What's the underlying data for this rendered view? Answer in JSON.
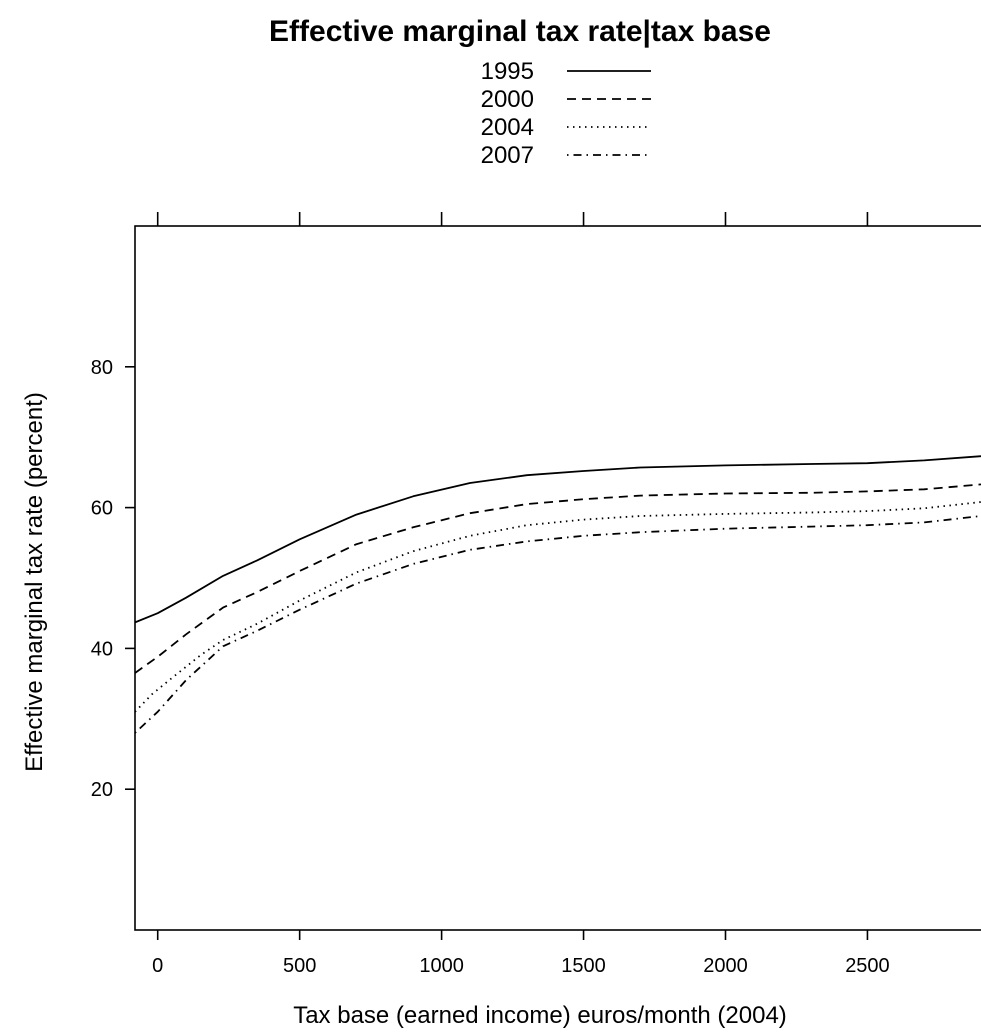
{
  "chart_data": {
    "type": "line",
    "title": "Effective marginal tax rate|tax base",
    "xlabel": "Tax base (earned income) euros/month (2004)",
    "ylabel": "Effective marginal tax rate (percent)",
    "xlim": [
      -80,
      2900
    ],
    "ylim": [
      0,
      100
    ],
    "xticks": [
      0,
      500,
      1000,
      1500,
      2000,
      2500
    ],
    "yticks": [
      20,
      40,
      60,
      80
    ],
    "grid": false,
    "legend_position": "top-center",
    "series": [
      {
        "name": "1995",
        "dash": "solid",
        "x": [
          -80,
          0,
          100,
          230,
          350,
          500,
          700,
          900,
          1100,
          1300,
          1500,
          1700,
          2000,
          2300,
          2500,
          2700,
          2900
        ],
        "y": [
          43.7,
          45.0,
          47.2,
          50.3,
          52.5,
          55.5,
          59.0,
          61.6,
          63.5,
          64.6,
          65.2,
          65.7,
          66.0,
          66.2,
          66.3,
          66.7,
          67.3
        ]
      },
      {
        "name": "2000",
        "dash": "dashed",
        "x": [
          -80,
          0,
          100,
          230,
          350,
          500,
          700,
          900,
          1100,
          1300,
          1500,
          1700,
          2000,
          2300,
          2500,
          2700,
          2900
        ],
        "y": [
          36.5,
          38.8,
          42.0,
          45.8,
          48.0,
          51.0,
          54.8,
          57.2,
          59.2,
          60.5,
          61.2,
          61.7,
          62.0,
          62.1,
          62.3,
          62.6,
          63.3
        ]
      },
      {
        "name": "2004",
        "dash": "dotted",
        "x": [
          -80,
          -20,
          50,
          150,
          230,
          350,
          500,
          700,
          900,
          1100,
          1300,
          1500,
          1700,
          2000,
          2300,
          2500,
          2700,
          2900
        ],
        "y": [
          31.0,
          33.5,
          35.8,
          39.0,
          41.2,
          43.5,
          46.8,
          50.8,
          53.8,
          56.0,
          57.5,
          58.3,
          58.8,
          59.1,
          59.3,
          59.5,
          59.9,
          60.8
        ]
      },
      {
        "name": "2007",
        "dash": "dotdash",
        "x": [
          -80,
          0,
          100,
          230,
          350,
          500,
          700,
          900,
          1100,
          1300,
          1500,
          1700,
          2000,
          2300,
          2500,
          2700,
          2900
        ],
        "y": [
          28.0,
          31.0,
          35.5,
          40.3,
          42.5,
          45.5,
          49.2,
          52.0,
          54.0,
          55.2,
          56.0,
          56.5,
          57.0,
          57.3,
          57.5,
          57.9,
          58.8
        ]
      }
    ]
  }
}
